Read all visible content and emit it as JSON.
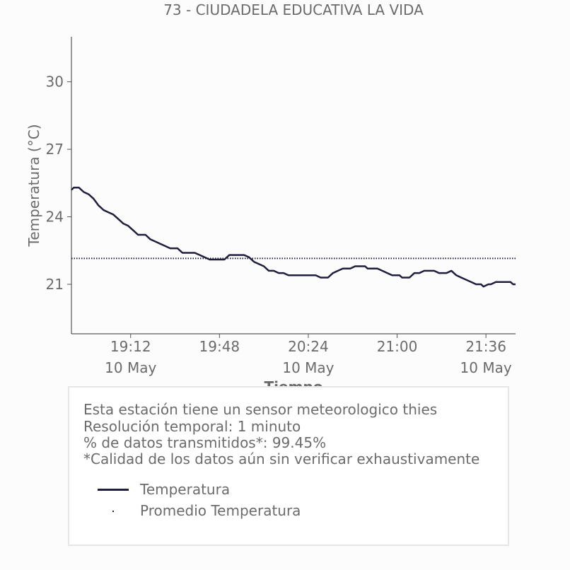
{
  "chart_data": {
    "type": "line",
    "title": "73 - CIUDADELA EDUCATIVA LA VIDA",
    "xlabel": "Tiempo",
    "ylabel": "Temperatura (°C)",
    "xlim": [
      "18:48",
      "21:48"
    ],
    "ylim": [
      18.8,
      32.0
    ],
    "yticks": [
      21,
      24,
      27,
      30
    ],
    "xticks": [
      {
        "time": "19:12",
        "label": "19:12",
        "date": "10 May"
      },
      {
        "time": "19:48",
        "label": "19:48",
        "date": ""
      },
      {
        "time": "20:24",
        "label": "20:24",
        "date": "10 May"
      },
      {
        "time": "21:00",
        "label": "21:00",
        "date": ""
      },
      {
        "time": "21:36",
        "label": "21:36",
        "date": "10 May"
      }
    ],
    "grid": false,
    "series": [
      {
        "name": "Temperatura",
        "style": "solid",
        "color": "#1f1f3d",
        "points": [
          [
            "18:48",
            25.2
          ],
          [
            "18:49",
            25.3
          ],
          [
            "18:51",
            25.3
          ],
          [
            "18:53",
            25.1
          ],
          [
            "18:55",
            25.0
          ],
          [
            "18:57",
            24.8
          ],
          [
            "18:59",
            24.5
          ],
          [
            "19:01",
            24.3
          ],
          [
            "19:03",
            24.2
          ],
          [
            "19:05",
            24.1
          ],
          [
            "19:07",
            23.9
          ],
          [
            "19:09",
            23.7
          ],
          [
            "19:11",
            23.6
          ],
          [
            "19:13",
            23.4
          ],
          [
            "19:15",
            23.2
          ],
          [
            "19:18",
            23.2
          ],
          [
            "19:20",
            23.0
          ],
          [
            "19:22",
            22.9
          ],
          [
            "19:24",
            22.8
          ],
          [
            "19:26",
            22.7
          ],
          [
            "19:28",
            22.6
          ],
          [
            "19:31",
            22.6
          ],
          [
            "19:33",
            22.4
          ],
          [
            "19:38",
            22.4
          ],
          [
            "19:40",
            22.3
          ],
          [
            "19:42",
            22.2
          ],
          [
            "19:44",
            22.1
          ],
          [
            "19:50",
            22.1
          ],
          [
            "19:52",
            22.3
          ],
          [
            "19:58",
            22.3
          ],
          [
            "20:00",
            22.2
          ],
          [
            "20:02",
            22.0
          ],
          [
            "20:04",
            21.9
          ],
          [
            "20:06",
            21.8
          ],
          [
            "20:08",
            21.6
          ],
          [
            "20:10",
            21.6
          ],
          [
            "20:12",
            21.5
          ],
          [
            "20:14",
            21.5
          ],
          [
            "20:16",
            21.4
          ],
          [
            "20:27",
            21.4
          ],
          [
            "20:29",
            21.3
          ],
          [
            "20:32",
            21.3
          ],
          [
            "20:34",
            21.5
          ],
          [
            "20:36",
            21.6
          ],
          [
            "20:38",
            21.7
          ],
          [
            "20:41",
            21.7
          ],
          [
            "20:43",
            21.8
          ],
          [
            "20:47",
            21.8
          ],
          [
            "20:48",
            21.7
          ],
          [
            "20:52",
            21.7
          ],
          [
            "20:54",
            21.6
          ],
          [
            "20:56",
            21.5
          ],
          [
            "20:58",
            21.4
          ],
          [
            "21:01",
            21.4
          ],
          [
            "21:02",
            21.3
          ],
          [
            "21:05",
            21.3
          ],
          [
            "21:07",
            21.5
          ],
          [
            "21:09",
            21.5
          ],
          [
            "21:11",
            21.6
          ],
          [
            "21:15",
            21.6
          ],
          [
            "21:17",
            21.5
          ],
          [
            "21:20",
            21.5
          ],
          [
            "21:22",
            21.6
          ],
          [
            "21:24",
            21.4
          ],
          [
            "21:26",
            21.3
          ],
          [
            "21:28",
            21.2
          ],
          [
            "21:30",
            21.1
          ],
          [
            "21:32",
            21.0
          ],
          [
            "21:34",
            21.0
          ],
          [
            "21:35",
            20.9
          ],
          [
            "21:37",
            21.0
          ],
          [
            "21:38",
            21.0
          ],
          [
            "21:40",
            21.1
          ],
          [
            "21:46",
            21.1
          ],
          [
            "21:47",
            21.0
          ],
          [
            "21:48",
            21.0
          ]
        ]
      },
      {
        "name": "Promedio Temperatura",
        "style": "dotted",
        "color": "#1f1f3d",
        "constant": 22.15
      }
    ]
  },
  "info": {
    "lines": [
      "Esta estación tiene un sensor meteorologico thies",
      "Resolución temporal: 1 minuto",
      "% de datos transmitidos*: 99.45%",
      "*Calidad de los datos aún sin verificar exhaustivamente"
    ],
    "legend": [
      {
        "label": "Temperatura",
        "marker": "line"
      },
      {
        "label": "Promedio Temperatura",
        "marker": "dot"
      }
    ]
  }
}
